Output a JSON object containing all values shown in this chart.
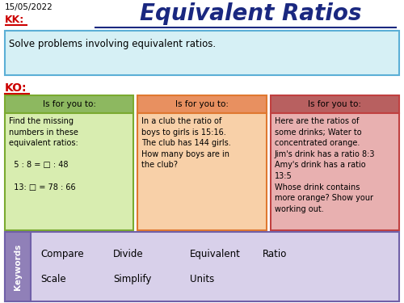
{
  "title": "Equivalent Ratios",
  "date": "15/05/2022",
  "kk_label": "KK:",
  "ko_label": "KO:",
  "kk_text": "Solve problems involving equivalent ratios.",
  "kk_box_bg": "#d6f0f5",
  "kk_box_border": "#5bafd6",
  "ko_headers": [
    "Is for you to:",
    "Is for you to:",
    "Is for you to:"
  ],
  "ko_header_colors": [
    "#8db860",
    "#e89060",
    "#b86060"
  ],
  "ko_body_colors": [
    "#d8edb0",
    "#f8d0a8",
    "#e8b0b0"
  ],
  "ko_border_colors": [
    "#7aaa30",
    "#e07830",
    "#c04040"
  ],
  "ko_texts": [
    "Find the missing\nnumbers in these\nequivalent ratios:\n\n  5 : 8 = □ : 48\n\n  13: □ = 78 : 66",
    "In a club the ratio of\nboys to girls is 15:16.\nThe club has 144 girls.\nHow many boys are in\nthe club?",
    "Here are the ratios of\nsome drinks; Water to\nconcentrated orange.\nJim's drink has a ratio 8:3\nAmy's drink has a ratio\n13:5\nWhose drink contains\nmore orange? Show your\nworking out."
  ],
  "keywords_label": "Keywords",
  "keywords_bg": "#d8d0ea",
  "keywords_border": "#7060a8",
  "keywords_tab_bg": "#9080b8",
  "keywords_row1": [
    "Compare",
    "Divide",
    "Equivalent",
    "Ratio"
  ],
  "keywords_row2": [
    "Scale",
    "Simplify",
    "Units"
  ],
  "bg_color": "#ffffff",
  "title_color": "#1a2880",
  "kk_color": "#cc0000",
  "ko_color": "#cc0000",
  "date_color": "#000000"
}
